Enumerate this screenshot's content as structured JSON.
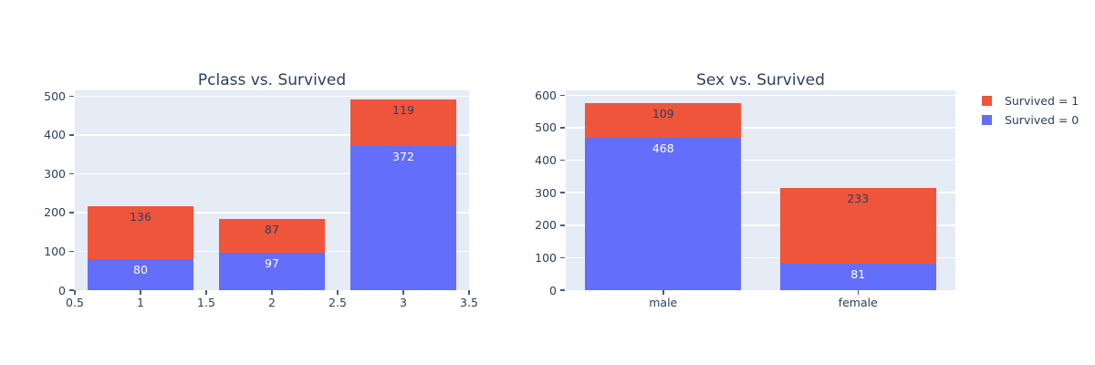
{
  "palette": {
    "survived_1_color": "#EF553B",
    "survived_0_color": "#636EFA",
    "plot_background": "#E5ECF6",
    "gridline_color": "#FFFFFF",
    "text_color": "#2a3f5f",
    "page_background": "#FFFFFF"
  },
  "legend": {
    "position": "top-right",
    "items": [
      {
        "label": "Survived = 1",
        "color": "#EF553B"
      },
      {
        "label": "Survived = 0",
        "color": "#636EFA"
      }
    ]
  },
  "chart_data": [
    {
      "type": "bar",
      "stacked": true,
      "title": "Pclass vs. Survived",
      "xlabel": "",
      "ylabel": "",
      "grid": "horizontal-only",
      "x_axis": {
        "kind": "linear",
        "lim": [
          0.5,
          3.5
        ],
        "ticks": [
          {
            "v": 0.5,
            "label": "0.5"
          },
          {
            "v": 1,
            "label": "1"
          },
          {
            "v": 1.5,
            "label": "1.5"
          },
          {
            "v": 2,
            "label": "2"
          },
          {
            "v": 2.5,
            "label": "2.5"
          },
          {
            "v": 3,
            "label": "3"
          },
          {
            "v": 3.5,
            "label": "3.5"
          }
        ]
      },
      "y_axis": {
        "lim": [
          0,
          515
        ],
        "ticks": [
          0,
          100,
          200,
          300,
          400,
          500
        ]
      },
      "x": [
        1,
        2,
        3
      ],
      "bar_width_fraction": 0.8,
      "series_bottom_to_top": [
        {
          "name": "Survived = 0",
          "color": "#636EFA",
          "values": [
            80,
            97,
            372
          ],
          "label_color": "#ffffff"
        },
        {
          "name": "Survived = 1",
          "color": "#EF553B",
          "values": [
            136,
            87,
            119
          ],
          "label_color": "#2a3f5f"
        }
      ],
      "totals": [
        216,
        184,
        491
      ]
    },
    {
      "type": "bar",
      "stacked": true,
      "title": "Sex vs. Survived",
      "xlabel": "",
      "ylabel": "",
      "grid": "horizontal-only",
      "x_axis": {
        "kind": "category",
        "categories": [
          "male",
          "female"
        ]
      },
      "y_axis": {
        "lim": [
          0,
          615
        ],
        "ticks": [
          0,
          100,
          200,
          300,
          400,
          500,
          600
        ]
      },
      "bar_width_fraction": 0.8,
      "series_bottom_to_top": [
        {
          "name": "Survived = 0",
          "color": "#636EFA",
          "values": [
            468,
            81
          ],
          "label_color": "#ffffff"
        },
        {
          "name": "Survived = 1",
          "color": "#EF553B",
          "values": [
            109,
            233
          ],
          "label_color": "#2a3f5f"
        }
      ],
      "totals": [
        577,
        314
      ]
    }
  ]
}
